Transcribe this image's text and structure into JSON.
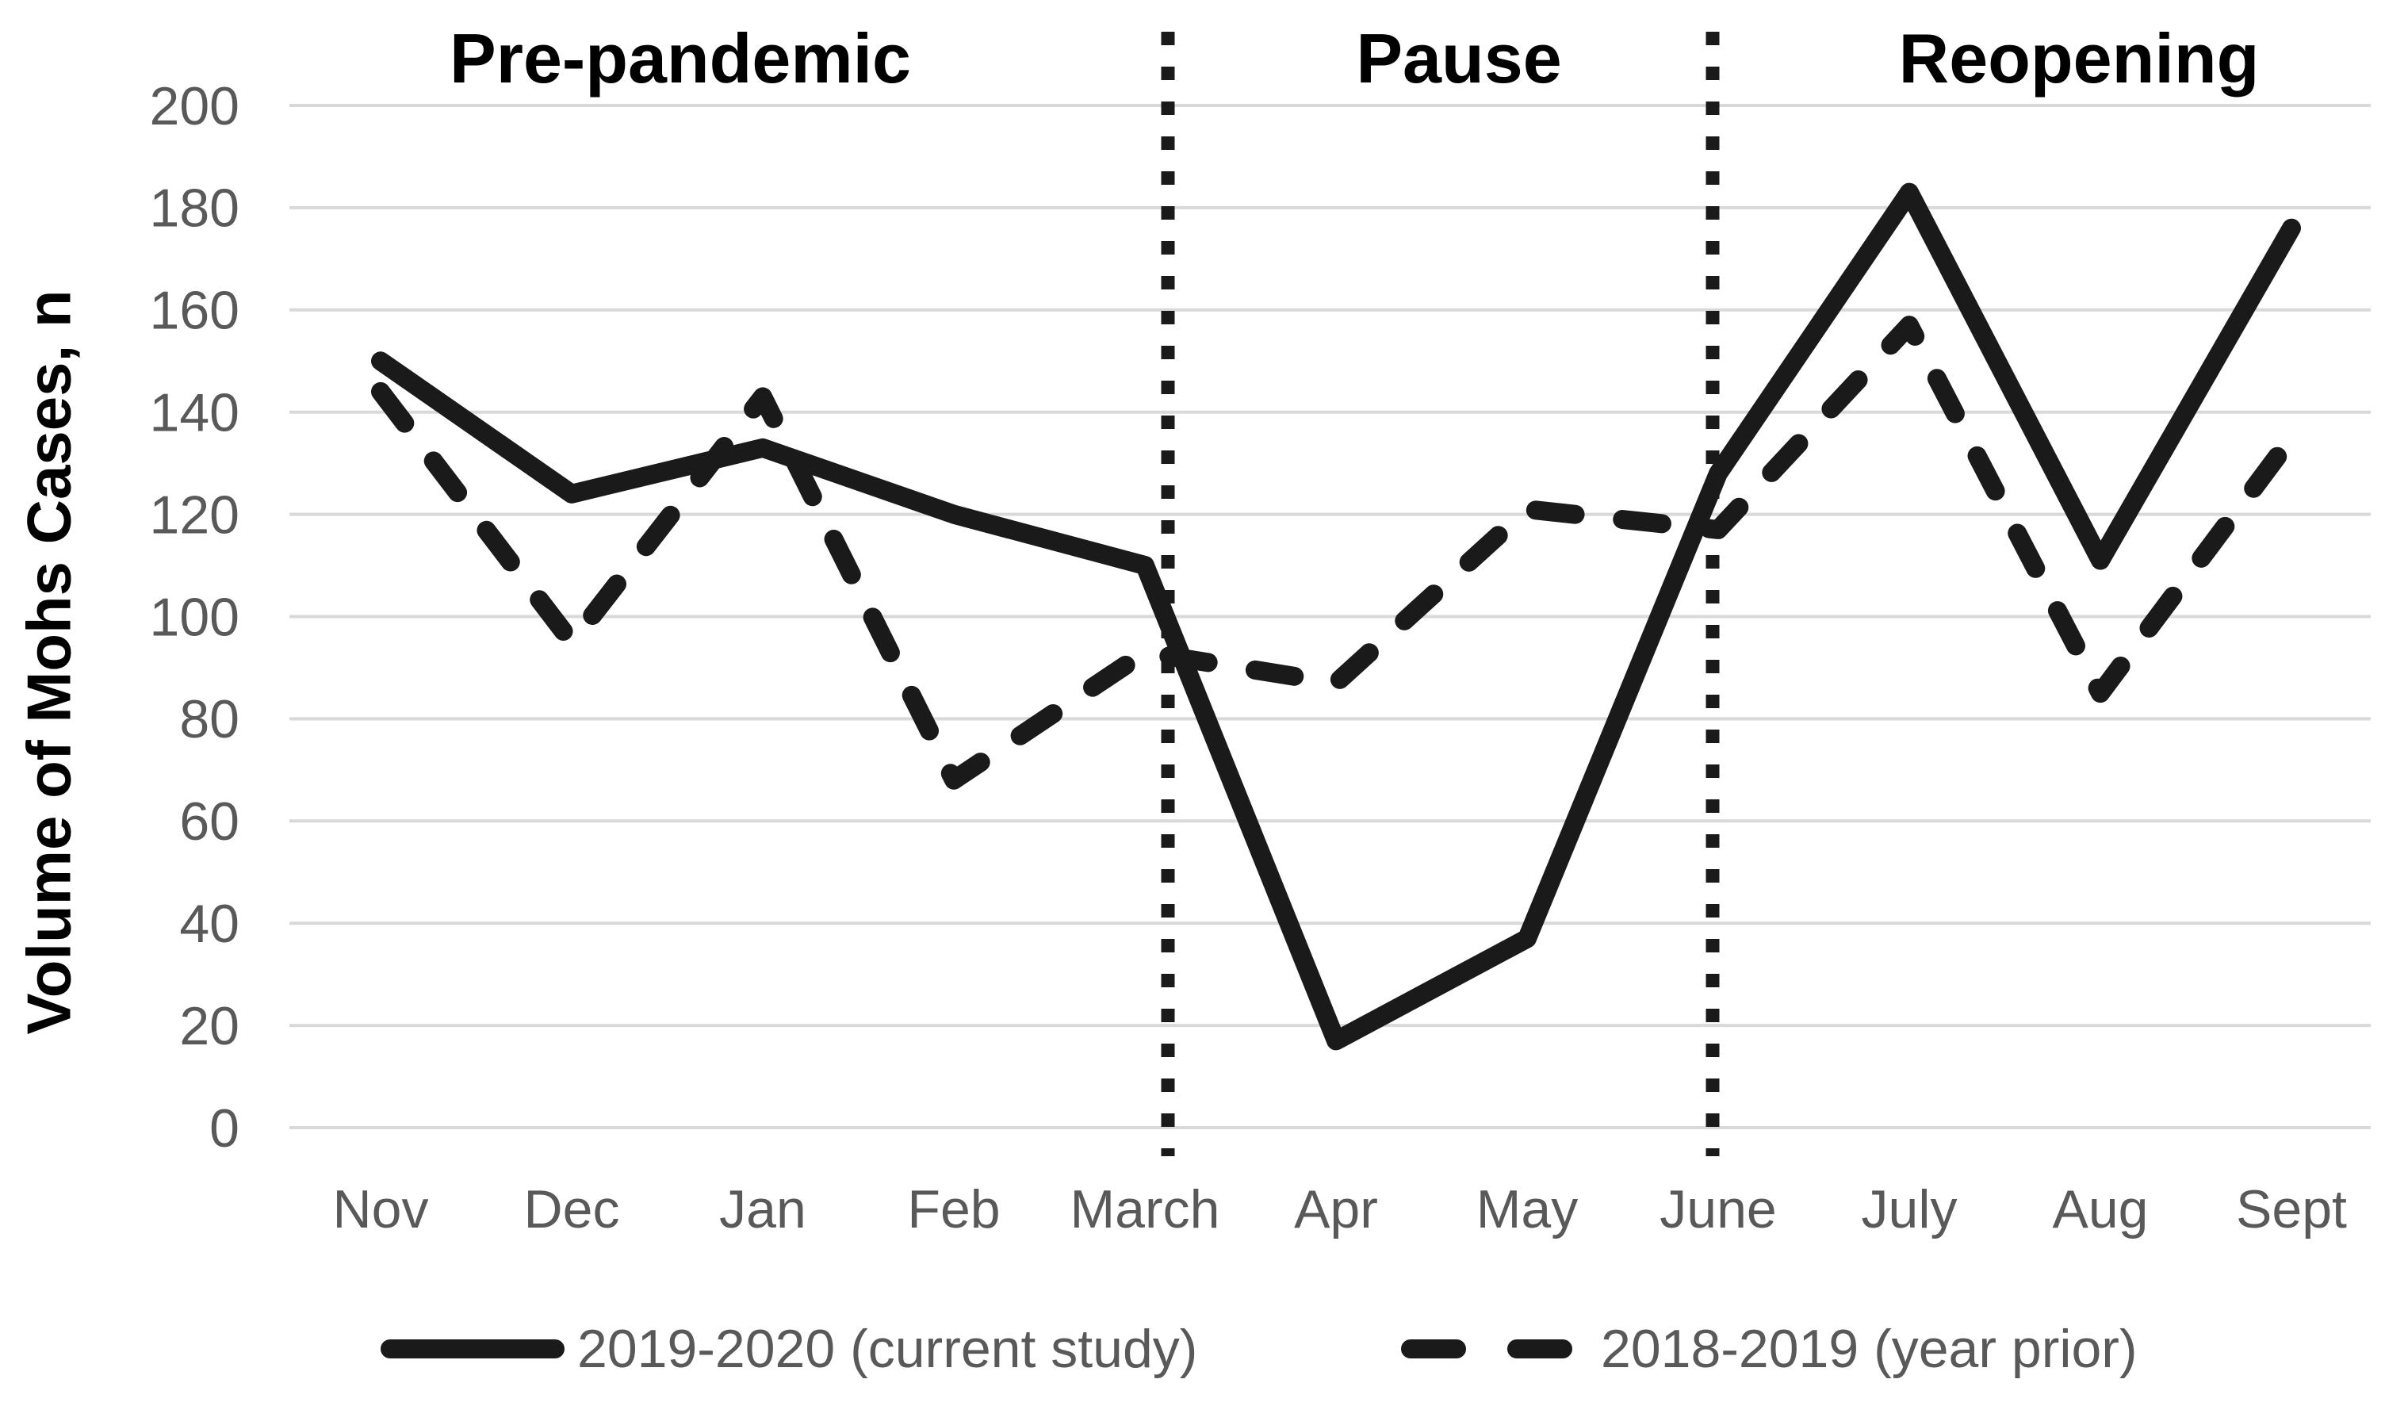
{
  "colors": {
    "line": "#1a1a1a",
    "divider": "#1a1a1a",
    "axis_text": "#595959",
    "gridline": "#d9d9d9",
    "title_text": "#000000",
    "background": "#ffffff"
  },
  "chart_data": {
    "type": "line",
    "phase_labels": [
      "Pre-pandemic",
      "Pause",
      "Reopening"
    ],
    "ylabel": "Volume of Mohs Cases, n",
    "categories": [
      "Nov",
      "Dec",
      "Jan",
      "Feb",
      "March",
      "Apr",
      "May",
      "June",
      "July",
      "Aug",
      "Sept"
    ],
    "y_ticks": [
      0,
      20,
      40,
      60,
      80,
      100,
      120,
      140,
      160,
      180,
      200
    ],
    "ylim": [
      0,
      200
    ],
    "grid": true,
    "legend_position": "bottom",
    "phase_dividers_at": [
      "March",
      "June"
    ],
    "series": [
      {
        "name": "2019-2020 (current study)",
        "style": "solid",
        "values": [
          150,
          124,
          133,
          120,
          110,
          17,
          37,
          128,
          183,
          111,
          176
        ]
      },
      {
        "name": "2018-2019 (year prior)",
        "style": "dashed",
        "values": [
          144,
          95,
          143,
          68,
          93,
          87,
          121,
          117,
          157,
          85,
          135
        ]
      }
    ]
  }
}
